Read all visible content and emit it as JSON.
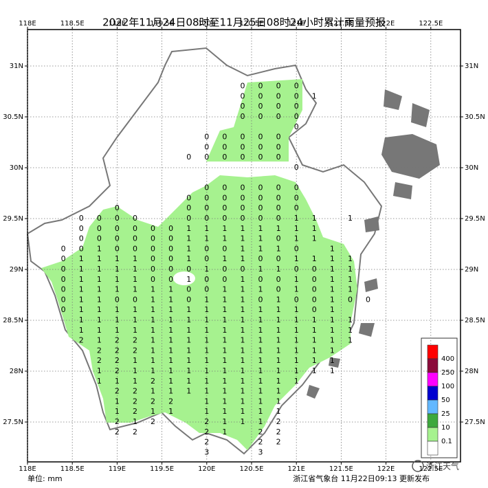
{
  "title": "2022年11月24日08时至11月25日08时24小时累计雨量预报",
  "xticks": [
    {
      "value": 118,
      "label": "118E"
    },
    {
      "value": 118.5,
      "label": "118.5E"
    },
    {
      "value": 119,
      "label": "119E"
    },
    {
      "value": 119.5,
      "label": "119.5E"
    },
    {
      "value": 120,
      "label": "120E"
    },
    {
      "value": 120.5,
      "label": "120.5E"
    },
    {
      "value": 121,
      "label": "121E"
    },
    {
      "value": 121.5,
      "label": "121.5E"
    },
    {
      "value": 122,
      "label": "122E"
    },
    {
      "value": 122.5,
      "label": "122.5E"
    }
  ],
  "yticks": [
    {
      "value": 31,
      "label": "31N"
    },
    {
      "value": 30.5,
      "label": "30.5N"
    },
    {
      "value": 30,
      "label": "30N"
    },
    {
      "value": 29.5,
      "label": "29.5N"
    },
    {
      "value": 29,
      "label": "29N"
    },
    {
      "value": 28.5,
      "label": "28.5N"
    },
    {
      "value": 28,
      "label": "28N"
    },
    {
      "value": 27.5,
      "label": "27.5N"
    }
  ],
  "legend": {
    "colors": [
      "#ff0000",
      "#8b0a3a",
      "#ff00ff",
      "#0000d0",
      "#63b8ff",
      "#3da83d",
      "#a6f28f",
      "#ffffff"
    ],
    "thresholds": [
      400,
      250,
      100,
      50,
      25,
      10,
      0.1
    ]
  },
  "unit": "单位: mm",
  "footer": "浙江省气象台 11月22日09:13 更新发布",
  "watermark": "浙江天气",
  "grid": [
    [
      null,
      null,
      null,
      null,
      null,
      null,
      null,
      null,
      null,
      null,
      0,
      0,
      0,
      0,
      null,
      null,
      null,
      null
    ],
    [
      null,
      null,
      null,
      null,
      null,
      null,
      null,
      null,
      null,
      null,
      0,
      0,
      0,
      0,
      1,
      null,
      null,
      null
    ],
    [
      null,
      null,
      null,
      null,
      null,
      null,
      null,
      null,
      null,
      null,
      0,
      0,
      0,
      0,
      null,
      null,
      null,
      null
    ],
    [
      null,
      null,
      null,
      null,
      null,
      null,
      null,
      null,
      null,
      null,
      0,
      0,
      0,
      0,
      null,
      null,
      null,
      null
    ],
    [
      null,
      null,
      null,
      null,
      null,
      null,
      null,
      null,
      null,
      null,
      null,
      null,
      null,
      0,
      null,
      null,
      null,
      null
    ],
    [
      null,
      null,
      null,
      null,
      null,
      null,
      null,
      null,
      0,
      0,
      0,
      0,
      0,
      null,
      null,
      null,
      null,
      null
    ],
    [
      null,
      null,
      null,
      null,
      null,
      null,
      null,
      null,
      0,
      0,
      0,
      0,
      0,
      null,
      null,
      null,
      null,
      null
    ],
    [
      null,
      null,
      null,
      null,
      null,
      null,
      null,
      0,
      0,
      0,
      0,
      0,
      0,
      null,
      null,
      null,
      null,
      null
    ],
    [
      null,
      null,
      null,
      null,
      null,
      null,
      null,
      null,
      null,
      null,
      null,
      null,
      null,
      0,
      null,
      null,
      null,
      null
    ],
    [
      null,
      null,
      null,
      null,
      null,
      null,
      null,
      null,
      null,
      null,
      null,
      null,
      null,
      null,
      null,
      null,
      null,
      null
    ],
    [
      null,
      null,
      null,
      null,
      null,
      null,
      null,
      null,
      0,
      0,
      0,
      0,
      0,
      0,
      null,
      null,
      null,
      null
    ],
    [
      null,
      null,
      null,
      null,
      null,
      null,
      null,
      0,
      0,
      0,
      0,
      0,
      0,
      0,
      null,
      null,
      null,
      null
    ],
    [
      null,
      null,
      null,
      0,
      null,
      null,
      null,
      0,
      0,
      0,
      0,
      0,
      0,
      0,
      null,
      null,
      null,
      null
    ],
    [
      null,
      0,
      0,
      0,
      0,
      null,
      null,
      0,
      0,
      0,
      0,
      0,
      0,
      1,
      1,
      null,
      1,
      null
    ],
    [
      null,
      0,
      0,
      0,
      0,
      0,
      0,
      1,
      1,
      1,
      1,
      1,
      1,
      1,
      1,
      null,
      null,
      null
    ],
    [
      null,
      0,
      0,
      0,
      0,
      0,
      0,
      1,
      1,
      1,
      1,
      1,
      0,
      1,
      1,
      null,
      null,
      null
    ],
    [
      0,
      0,
      1,
      0,
      0,
      0,
      0,
      1,
      0,
      0,
      1,
      1,
      1,
      0,
      null,
      1,
      null,
      null
    ],
    [
      0,
      1,
      1,
      1,
      1,
      0,
      0,
      1,
      0,
      1,
      1,
      0,
      0,
      1,
      1,
      1,
      1,
      null
    ],
    [
      0,
      1,
      1,
      1,
      1,
      0,
      0,
      0,
      1,
      0,
      0,
      1,
      1,
      0,
      0,
      1,
      1,
      null
    ],
    [
      0,
      1,
      1,
      1,
      1,
      0,
      0,
      1,
      0,
      0,
      1,
      0,
      0,
      1,
      0,
      1,
      1,
      null
    ],
    [
      0,
      1,
      1,
      1,
      1,
      1,
      1,
      0,
      0,
      1,
      1,
      1,
      0,
      1,
      0,
      1,
      1,
      null
    ],
    [
      0,
      1,
      1,
      0,
      0,
      1,
      1,
      0,
      1,
      1,
      1,
      0,
      1,
      0,
      0,
      1,
      0,
      0
    ],
    [
      0,
      1,
      1,
      1,
      1,
      1,
      1,
      1,
      1,
      1,
      1,
      1,
      1,
      1,
      0,
      1,
      null,
      null
    ],
    [
      null,
      1,
      1,
      1,
      1,
      1,
      1,
      1,
      1,
      1,
      1,
      1,
      1,
      1,
      1,
      1,
      1,
      null
    ],
    [
      null,
      1,
      1,
      1,
      1,
      1,
      1,
      1,
      1,
      1,
      1,
      1,
      1,
      1,
      1,
      1,
      1,
      null
    ],
    [
      null,
      2,
      1,
      2,
      2,
      1,
      1,
      1,
      1,
      1,
      1,
      1,
      1,
      1,
      1,
      1,
      1,
      null
    ],
    [
      null,
      null,
      2,
      2,
      2,
      1,
      1,
      1,
      1,
      1,
      1,
      1,
      1,
      1,
      1,
      1,
      null,
      null
    ],
    [
      null,
      null,
      2,
      2,
      1,
      1,
      1,
      1,
      1,
      1,
      1,
      1,
      1,
      1,
      1,
      1,
      null,
      null
    ],
    [
      null,
      null,
      1,
      2,
      1,
      1,
      1,
      1,
      1,
      1,
      1,
      1,
      1,
      1,
      1,
      1,
      null,
      null
    ],
    [
      null,
      null,
      1,
      1,
      1,
      2,
      1,
      1,
      1,
      1,
      1,
      1,
      1,
      1,
      null,
      null,
      null,
      null
    ],
    [
      null,
      null,
      null,
      2,
      2,
      1,
      1,
      1,
      1,
      1,
      1,
      1,
      1,
      null,
      null,
      null,
      null,
      null
    ],
    [
      null,
      null,
      null,
      1,
      2,
      2,
      2,
      null,
      1,
      1,
      1,
      1,
      1,
      null,
      null,
      null,
      null,
      null
    ],
    [
      null,
      null,
      null,
      1,
      2,
      1,
      1,
      null,
      1,
      1,
      1,
      1,
      1,
      null,
      null,
      null,
      null,
      null
    ],
    [
      null,
      null,
      null,
      2,
      1,
      2,
      null,
      null,
      2,
      1,
      1,
      1,
      2,
      null,
      null,
      null,
      null,
      null
    ],
    [
      null,
      null,
      null,
      2,
      2,
      null,
      null,
      null,
      2,
      1,
      null,
      2,
      2,
      null,
      null,
      null,
      null,
      null
    ],
    [
      null,
      null,
      null,
      null,
      null,
      null,
      null,
      null,
      2,
      null,
      null,
      2,
      2,
      null,
      null,
      null,
      null,
      null
    ],
    [
      null,
      null,
      null,
      null,
      null,
      null,
      null,
      null,
      3,
      null,
      null,
      3,
      null,
      null,
      null,
      null,
      null,
      null
    ]
  ]
}
